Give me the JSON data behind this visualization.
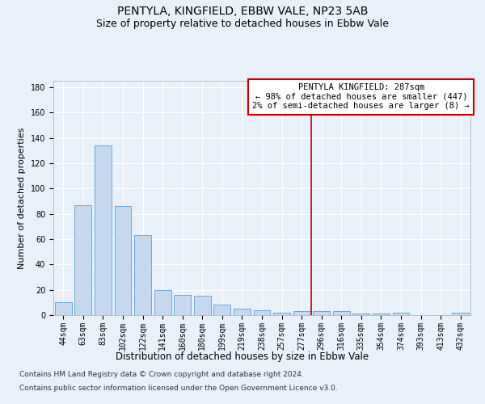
{
  "title": "PENTYLA, KINGFIELD, EBBW VALE, NP23 5AB",
  "subtitle": "Size of property relative to detached houses in Ebbw Vale",
  "xlabel": "Distribution of detached houses by size in Ebbw Vale",
  "ylabel": "Number of detached properties",
  "categories": [
    "44sqm",
    "63sqm",
    "83sqm",
    "102sqm",
    "122sqm",
    "141sqm",
    "160sqm",
    "180sqm",
    "199sqm",
    "219sqm",
    "238sqm",
    "257sqm",
    "277sqm",
    "296sqm",
    "316sqm",
    "335sqm",
    "354sqm",
    "374sqm",
    "393sqm",
    "413sqm",
    "432sqm"
  ],
  "values": [
    10,
    87,
    134,
    86,
    63,
    20,
    16,
    15,
    8,
    5,
    4,
    2,
    3,
    3,
    3,
    1,
    1,
    2,
    0,
    0,
    2
  ],
  "bar_color": "#c5d8f0",
  "bar_edge_color": "#5a9fd4",
  "vline_color": "#c00000",
  "annotation_text": "PENTYLA KINGFIELD: 287sqm\n← 98% of detached houses are smaller (447)\n2% of semi-detached houses are larger (8) →",
  "annotation_box_color": "white",
  "annotation_box_edge_color": "#c00000",
  "ylim": [
    0,
    185
  ],
  "yticks": [
    0,
    20,
    40,
    60,
    80,
    100,
    120,
    140,
    160,
    180
  ],
  "footer_line1": "Contains HM Land Registry data © Crown copyright and database right 2024.",
  "footer_line2": "Contains public sector information licensed under the Open Government Licence v3.0.",
  "background_color": "#e8f0fa",
  "plot_bg_color": "#e8f0fa",
  "grid_color": "white",
  "title_fontsize": 10,
  "subtitle_fontsize": 9,
  "xlabel_fontsize": 8.5,
  "ylabel_fontsize": 8,
  "tick_fontsize": 7,
  "annotation_fontsize": 7.5,
  "footer_fontsize": 6.5
}
